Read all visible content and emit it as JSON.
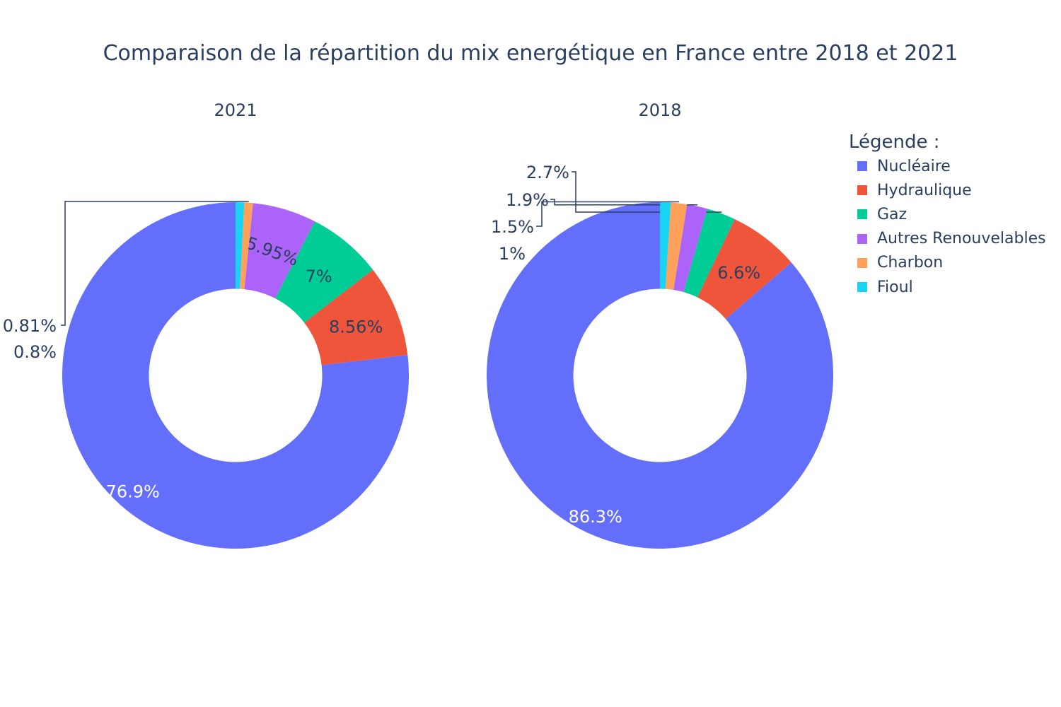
{
  "title": "Comparaison de la répartition du mix energétique en France entre 2018 et 2021",
  "legend": {
    "title": "Légende :",
    "items": [
      {
        "label": "Nucléaire",
        "color": "#636efa"
      },
      {
        "label": "Hydraulique",
        "color": "#EF553B"
      },
      {
        "label": "Gaz",
        "color": "#00cc96"
      },
      {
        "label": "Autres Renouvelables",
        "color": "#ab63fa"
      },
      {
        "label": "Charbon",
        "color": "#FFA15A"
      },
      {
        "label": "Fioul",
        "color": "#19d3f3"
      }
    ]
  },
  "chart_data": [
    {
      "type": "pie",
      "hole": 0.5,
      "title": "2021",
      "categories": [
        "Nucléaire",
        "Hydraulique",
        "Gaz",
        "Autres Renouvelables",
        "Charbon",
        "Fioul"
      ],
      "values": [
        76.9,
        8.56,
        7,
        5.95,
        0.81,
        0.8
      ],
      "labels": [
        "76.9%",
        "8.56%",
        "7%",
        "5.95%",
        "0.81%",
        "0.8%"
      ]
    },
    {
      "type": "pie",
      "hole": 0.5,
      "title": "2018",
      "categories": [
        "Nucléaire",
        "Hydraulique",
        "Gaz",
        "Autres Renouvelables",
        "Charbon",
        "Fioul"
      ],
      "values": [
        86.3,
        6.6,
        2.7,
        1.9,
        1.5,
        1
      ],
      "labels": [
        "86.3%",
        "6.6%",
        "2.7%",
        "1.9%",
        "1.5%",
        "1%"
      ]
    }
  ]
}
